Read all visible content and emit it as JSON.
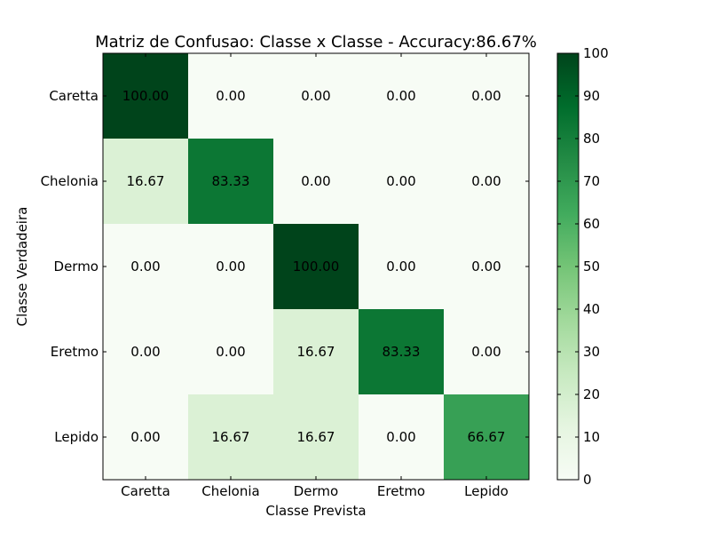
{
  "chart_data": {
    "type": "heatmap",
    "title": "Matriz de Confusao: Classe x Classe - Accuracy:86.67%",
    "xlabel": "Classe Prevista",
    "ylabel": "Classe Verdadeira",
    "x_categories": [
      "Caretta",
      "Chelonia",
      "Dermo",
      "Eretmo",
      "Lepido"
    ],
    "y_categories": [
      "Caretta",
      "Chelonia",
      "Dermo",
      "Eretmo",
      "Lepido"
    ],
    "values": [
      [
        100.0,
        0.0,
        0.0,
        0.0,
        0.0
      ],
      [
        16.67,
        83.33,
        0.0,
        0.0,
        0.0
      ],
      [
        0.0,
        0.0,
        100.0,
        0.0,
        0.0
      ],
      [
        0.0,
        0.0,
        16.67,
        83.33,
        0.0
      ],
      [
        0.0,
        16.67,
        16.67,
        0.0,
        66.67
      ]
    ],
    "cell_labels": [
      [
        "100.00",
        "0.00",
        "0.00",
        "0.00",
        "0.00"
      ],
      [
        "16.67",
        "83.33",
        "0.00",
        "0.00",
        "0.00"
      ],
      [
        "0.00",
        "0.00",
        "100.00",
        "0.00",
        "0.00"
      ],
      [
        "0.00",
        "0.00",
        "16.67",
        "83.33",
        "0.00"
      ],
      [
        "0.00",
        "16.67",
        "16.67",
        "0.00",
        "66.67"
      ]
    ],
    "colormap": "Greens",
    "vmin": 0,
    "vmax": 100,
    "colorbar_ticks": [
      "0",
      "10",
      "20",
      "30",
      "40",
      "50",
      "60",
      "70",
      "80",
      "90",
      "100"
    ],
    "colorbar": true,
    "grid": false
  },
  "colors": {
    "greens_scale": [
      "#f7fcf5",
      "#e5f5e0",
      "#c7e9c0",
      "#a1d99b",
      "#74c476",
      "#41ab5d",
      "#238b45",
      "#006d2c",
      "#00441b"
    ],
    "axis": "#000000",
    "background": "#ffffff"
  }
}
